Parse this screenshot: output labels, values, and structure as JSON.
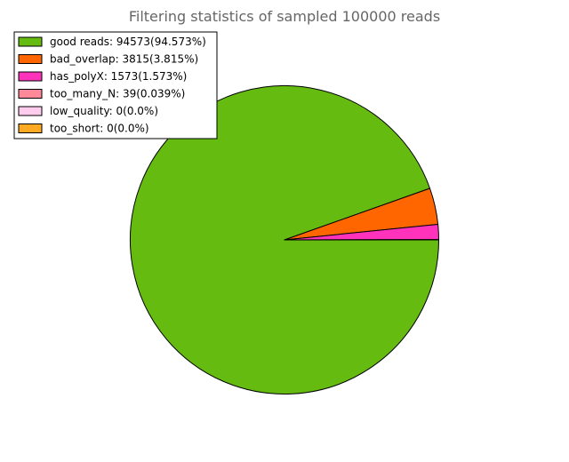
{
  "chart_data": {
    "type": "pie",
    "title": "Filtering statistics of sampled 100000 reads",
    "slices": [
      {
        "label": "good reads: 94573(94.573%)",
        "value": 94573,
        "color": "#66bb11"
      },
      {
        "label": "bad_overlap: 3815(3.815%)",
        "value": 3815,
        "color": "#ff6600"
      },
      {
        "label": "has_polyX: 1573(1.573%)",
        "value": 1573,
        "color": "#ff33bb"
      },
      {
        "label": "too_many_N: 39(0.039%)",
        "value": 39,
        "color": "#ff8899"
      },
      {
        "label": "low_quality: 0(0.0%)",
        "value": 0,
        "color": "#ffccee"
      },
      {
        "label": "too_short: 0(0.0%)",
        "value": 0,
        "color": "#ffaa22"
      }
    ],
    "legend_position": "top-left"
  }
}
